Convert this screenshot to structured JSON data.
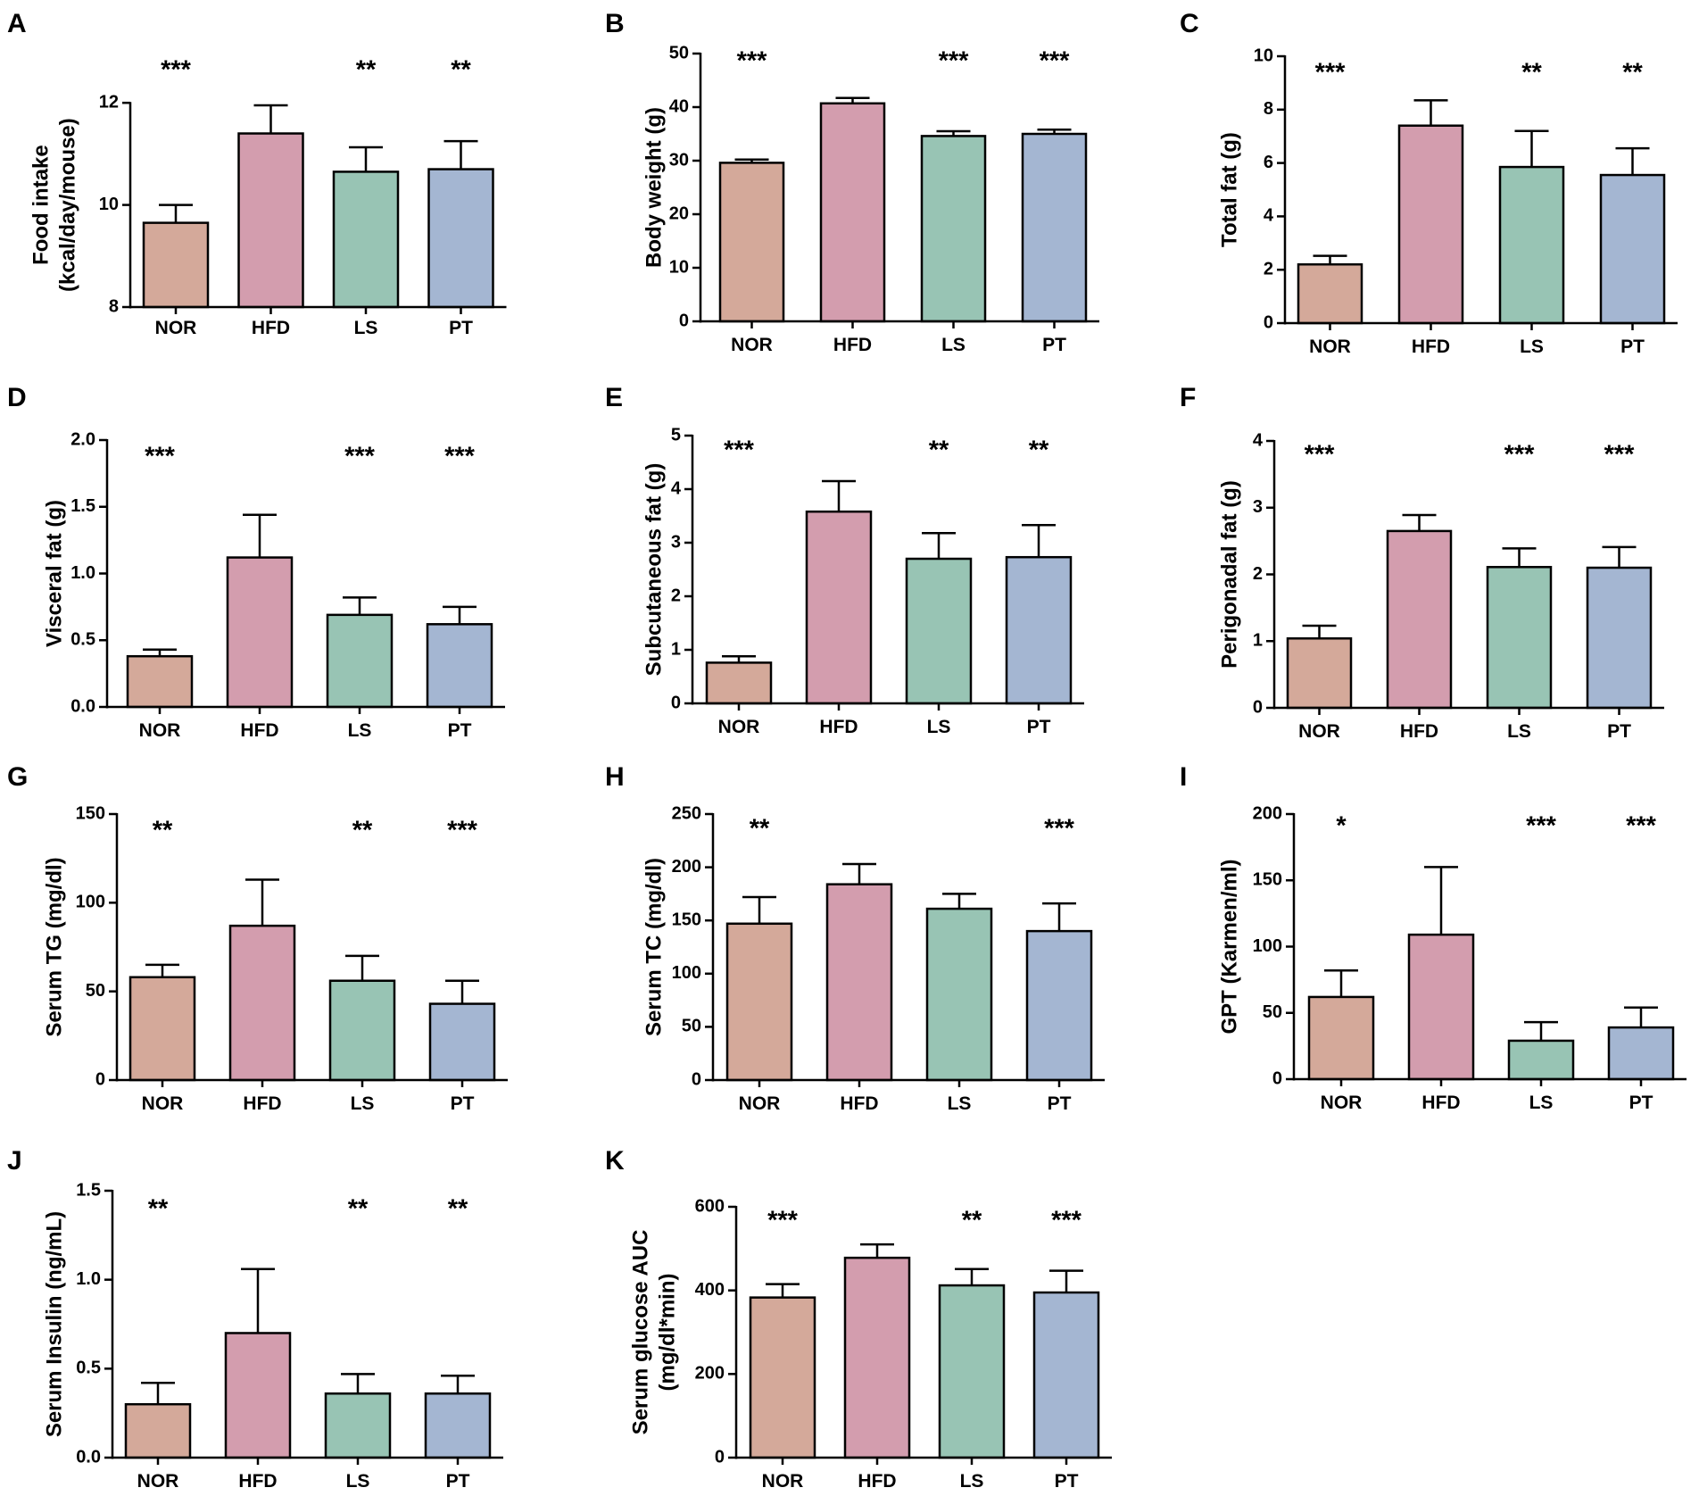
{
  "figure": {
    "colors": {
      "NOR": "#d4a99a",
      "HFD": "#d39dae",
      "LS": "#98c4b4",
      "PT": "#a4b6d2",
      "stroke": "#000000"
    }
  },
  "chart_data": [
    {
      "type": "bar",
      "panel": "A",
      "categories": [
        "NOR",
        "HFD",
        "LS",
        "PT"
      ],
      "values": [
        9.65,
        11.4,
        10.65,
        10.7
      ],
      "errors": [
        0.35,
        0.55,
        0.48,
        0.55
      ],
      "significance": [
        "***",
        "",
        "**",
        "**"
      ],
      "ylabel": [
        "Food intake",
        "(kcal/day/mouse)"
      ],
      "ylim": [
        8,
        13
      ],
      "yticks": [
        "8",
        "10",
        "12"
      ],
      "tick_values": [
        8,
        10,
        12
      ]
    },
    {
      "type": "bar",
      "panel": "B",
      "categories": [
        "NOR",
        "HFD",
        "LS",
        "PT"
      ],
      "values": [
        29.6,
        40.7,
        34.6,
        35.0
      ],
      "errors": [
        0.6,
        1.0,
        0.9,
        0.8
      ],
      "significance": [
        "***",
        "",
        "***",
        "***"
      ],
      "ylabel": [
        "Body weight (g)"
      ],
      "ylim": [
        0,
        50
      ],
      "yticks": [
        "0",
        "10",
        "20",
        "30",
        "40",
        "50"
      ],
      "tick_values": [
        0,
        10,
        20,
        30,
        40,
        50
      ]
    },
    {
      "type": "bar",
      "panel": "C",
      "categories": [
        "NOR",
        "HFD",
        "LS",
        "PT"
      ],
      "values": [
        2.2,
        7.4,
        5.85,
        5.55
      ],
      "errors": [
        0.32,
        0.95,
        1.35,
        1.0
      ],
      "significance": [
        "***",
        "",
        "**",
        "**"
      ],
      "ylabel": [
        "Total fat (g)"
      ],
      "ylim": [
        0,
        10
      ],
      "yticks": [
        "0",
        "2",
        "4",
        "6",
        "8",
        "10"
      ],
      "tick_values": [
        0,
        2,
        4,
        6,
        8,
        10
      ]
    },
    {
      "type": "bar",
      "panel": "D",
      "categories": [
        "NOR",
        "HFD",
        "LS",
        "PT"
      ],
      "values": [
        0.38,
        1.12,
        0.69,
        0.62
      ],
      "errors": [
        0.05,
        0.32,
        0.13,
        0.13
      ],
      "significance": [
        "***",
        "",
        "***",
        "***"
      ],
      "ylabel": [
        "Visceral fat (g)"
      ],
      "ylim": [
        0,
        2.0
      ],
      "yticks": [
        "0.0",
        "0.5",
        "1.0",
        "1.5",
        "2.0"
      ],
      "tick_values": [
        0,
        0.5,
        1.0,
        1.5,
        2.0
      ]
    },
    {
      "type": "bar",
      "panel": "E",
      "categories": [
        "NOR",
        "HFD",
        "LS",
        "PT"
      ],
      "values": [
        0.76,
        3.58,
        2.7,
        2.73
      ],
      "errors": [
        0.12,
        0.57,
        0.48,
        0.6
      ],
      "significance": [
        "***",
        "",
        "**",
        "**"
      ],
      "ylabel": [
        "Subcutaneous fat (g)"
      ],
      "ylim": [
        0,
        5
      ],
      "yticks": [
        "0",
        "1",
        "2",
        "3",
        "4",
        "5"
      ],
      "tick_values": [
        0,
        1,
        2,
        3,
        4,
        5
      ]
    },
    {
      "type": "bar",
      "panel": "F",
      "categories": [
        "NOR",
        "HFD",
        "LS",
        "PT"
      ],
      "values": [
        1.04,
        2.65,
        2.11,
        2.1
      ],
      "errors": [
        0.19,
        0.24,
        0.28,
        0.31
      ],
      "significance": [
        "***",
        "",
        "***",
        "***"
      ],
      "ylabel": [
        "Perigonadal fat (g)"
      ],
      "ylim": [
        0,
        4
      ],
      "yticks": [
        "0",
        "1",
        "2",
        "3",
        "4"
      ],
      "tick_values": [
        0,
        1,
        2,
        3,
        4
      ]
    },
    {
      "type": "bar",
      "panel": "G",
      "categories": [
        "NOR",
        "HFD",
        "LS",
        "PT"
      ],
      "values": [
        58,
        87,
        56,
        43
      ],
      "errors": [
        7,
        26,
        14,
        13
      ],
      "significance": [
        "**",
        "",
        "**",
        "***"
      ],
      "ylabel": [
        "Serum  TG (mg/dl)"
      ],
      "ylim": [
        0,
        150
      ],
      "yticks": [
        "0",
        "50",
        "100",
        "150"
      ],
      "tick_values": [
        0,
        50,
        100,
        150
      ]
    },
    {
      "type": "bar",
      "panel": "H",
      "categories": [
        "NOR",
        "HFD",
        "LS",
        "PT"
      ],
      "values": [
        147,
        184,
        161,
        140
      ],
      "errors": [
        25,
        19,
        14,
        26
      ],
      "significance": [
        "**",
        "",
        "",
        "***"
      ],
      "ylabel": [
        "Serum  TC (mg/dl)"
      ],
      "ylim": [
        0,
        250
      ],
      "yticks": [
        "0",
        "50",
        "100",
        "150",
        "200",
        "250"
      ],
      "tick_values": [
        0,
        50,
        100,
        150,
        200,
        250
      ]
    },
    {
      "type": "bar",
      "panel": "I",
      "categories": [
        "NOR",
        "HFD",
        "LS",
        "PT"
      ],
      "values": [
        62,
        109,
        29,
        39
      ],
      "errors": [
        20,
        51,
        14,
        15
      ],
      "significance": [
        "*",
        "",
        "***",
        "***"
      ],
      "ylabel": [
        "GPT (Karmen/ml)"
      ],
      "ylim": [
        0,
        200
      ],
      "yticks": [
        "0",
        "50",
        "100",
        "150",
        "200"
      ],
      "tick_values": [
        0,
        50,
        100,
        150,
        200
      ]
    },
    {
      "type": "bar",
      "panel": "J",
      "categories": [
        "NOR",
        "HFD",
        "LS",
        "PT"
      ],
      "values": [
        0.3,
        0.7,
        0.36,
        0.36
      ],
      "errors": [
        0.12,
        0.36,
        0.11,
        0.1
      ],
      "significance": [
        "**",
        "",
        "**",
        "**"
      ],
      "ylabel": [
        "Serum Insulin (ng/mL)"
      ],
      "ylim": [
        0,
        1.5
      ],
      "yticks": [
        "0.0",
        "0.5",
        "1.0",
        "1.5"
      ],
      "tick_values": [
        0,
        0.5,
        1.0,
        1.5
      ]
    },
    {
      "type": "bar",
      "panel": "K",
      "categories": [
        "NOR",
        "HFD",
        "LS",
        "PT"
      ],
      "values": [
        383,
        478,
        412,
        395
      ],
      "errors": [
        32,
        32,
        39,
        52
      ],
      "significance": [
        "***",
        "",
        "**",
        "***"
      ],
      "ylabel": [
        "Serum glucose AUC",
        "(mg/dl*min)"
      ],
      "ylim": [
        0,
        600
      ],
      "yticks": [
        "0",
        "200",
        "400",
        "600"
      ],
      "tick_values": [
        0,
        200,
        400,
        600
      ]
    }
  ]
}
